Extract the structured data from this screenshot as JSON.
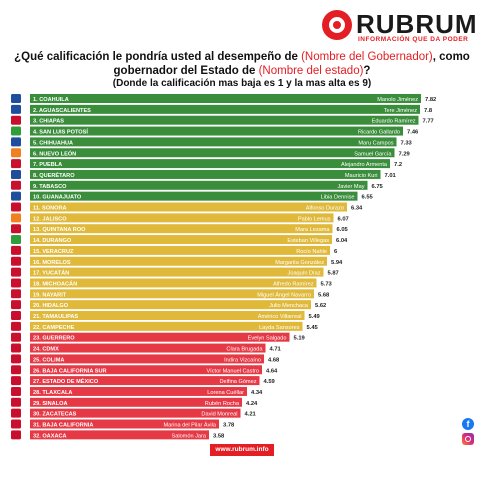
{
  "brand": {
    "name": "RUBRUM",
    "tagline": "INFORMACIÓN QUE DA PODER",
    "website": "www.rubrum.info"
  },
  "heading": {
    "line1_prefix": "¿Qué calificación le pondría usted al desempeño de ",
    "line1_placeholder": "(Nombre del Gobernador)",
    "line1_suffix": ", como",
    "line2_prefix": "gobernador del Estado de ",
    "line2_placeholder": "(Nombre del estado)",
    "line2_suffix": "?",
    "subtitle": "(Donde la calificación mas baja es 1 y la mas alta es 9)"
  },
  "colors": {
    "green": "#3a8d3b",
    "yellow": "#e0b93b",
    "red": "#e63946",
    "accent": "#e31e24"
  },
  "chart_data": {
    "type": "bar",
    "orientation": "horizontal",
    "xlim": [
      0,
      9
    ],
    "categories": [
      "1. COAHUILA",
      "2. AGUASCALIENTES",
      "3. CHIAPAS",
      "4. SAN LUIS POTOSÍ",
      "5. CHIHUAHUA",
      "6. NUEVO LEÓN",
      "7. PUEBLA",
      "8. QUERÉTARO",
      "9. TABASCO",
      "10. GUANAJUATO",
      "11. SONORA",
      "12. JALISCO",
      "13. QUINTANA ROO",
      "14. DURANGO",
      "15. VERACRUZ",
      "16. MORELOS",
      "17. YUCATÁN",
      "18. MICHOACÁN",
      "19. NAYARIT",
      "20. HIDALGO",
      "21. TAMAULIPAS",
      "22. CAMPECHE",
      "23. GUERRERO",
      "24. CDMX",
      "25. COLIMA",
      "26. BAJA CALIFORNIA SUR",
      "27. ESTADO DE MÉXICO",
      "28. TLAXCALA",
      "29. SINALOA",
      "30. ZACATECAS",
      "31. BAJA CALIFORNIA",
      "32. OAXACA"
    ],
    "governors": [
      "Manolo Jiménez",
      "Tere Jiménez",
      "Eduardo Ramírez",
      "Ricardo Gallardo",
      "Maru Campos",
      "Samuel García",
      "Alejandro Armenta",
      "Mauricio Kuri",
      "Javier May",
      "Libia Dennise",
      "Alfonso Durazo",
      "Pablo Lemus",
      "Mara Lezama",
      "Esteban Villegas",
      "Rocío Nahle",
      "Margarita González",
      "Joaquín Díaz",
      "Alfredo Ramírez",
      "Miguel Ángel Navarro",
      "Julio Menchaca",
      "Américo Villarreal",
      "Layda Sansores",
      "Evelyn Salgado",
      "Clara Brugada",
      "Indira Vizcaíno",
      "Víctor Manuel Castro",
      "Delfina Gómez",
      "Lorena Cuéllar",
      "Rubén Rocha",
      "David Monreal",
      "Marina del Pilar Ávila",
      "Salomón Jara"
    ],
    "values": [
      7.82,
      7.8,
      7.77,
      7.46,
      7.33,
      7.29,
      7.2,
      7.01,
      6.75,
      6.55,
      6.34,
      6.07,
      6.05,
      6.04,
      6,
      5.94,
      5.87,
      5.73,
      5.68,
      5.62,
      5.49,
      5.45,
      5.19,
      4.71,
      4.68,
      4.64,
      4.59,
      4.34,
      4.24,
      4.21,
      3.78,
      3.58
    ],
    "value_labels": [
      "7.82",
      "7.8",
      "7.77",
      "7.46",
      "7.33",
      "7.29",
      "7.2",
      "7.01",
      "6.75",
      "6.55",
      "6.34",
      "6.07",
      "6.05",
      "6.04",
      "6",
      "5.94",
      "5.87",
      "5.73",
      "5.68",
      "5.62",
      "5.49",
      "5.45",
      "5.19",
      "4.71",
      "4.68",
      "4.64",
      "4.59",
      "4.34",
      "4.24",
      "4.21",
      "3.78",
      "3.58"
    ],
    "color_groups": [
      "green",
      "green",
      "green",
      "green",
      "green",
      "green",
      "green",
      "green",
      "green",
      "green",
      "yellow",
      "yellow",
      "yellow",
      "yellow",
      "yellow",
      "yellow",
      "yellow",
      "yellow",
      "yellow",
      "yellow",
      "yellow",
      "yellow",
      "red",
      "red",
      "red",
      "red",
      "red",
      "red",
      "red",
      "red",
      "red",
      "red"
    ],
    "party_logo_color": [
      "#1f4e9c",
      "#1f4e9c",
      "#c8102e",
      "#2e9d3a",
      "#1f4e9c",
      "#f08020",
      "#c8102e",
      "#1f4e9c",
      "#c8102e",
      "#1f4e9c",
      "#c8102e",
      "#f08020",
      "#c8102e",
      "#2e9d3a",
      "#c8102e",
      "#c8102e",
      "#c8102e",
      "#c8102e",
      "#c8102e",
      "#c8102e",
      "#c8102e",
      "#c8102e",
      "#c8102e",
      "#c8102e",
      "#c8102e",
      "#c8102e",
      "#c8102e",
      "#c8102e",
      "#c8102e",
      "#c8102e",
      "#c8102e",
      "#c8102e"
    ]
  }
}
